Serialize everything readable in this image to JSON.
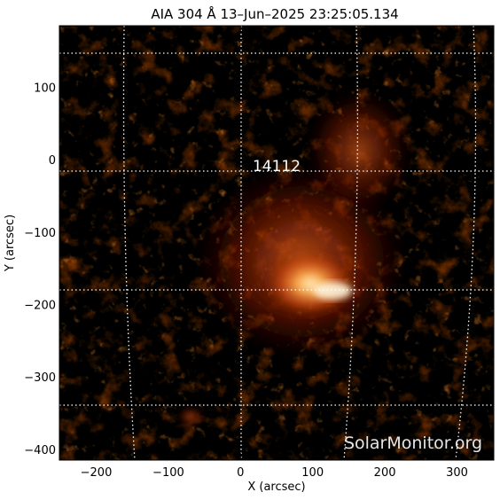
{
  "title": "AIA 304 Å 13–Jun–2025 23:25:05.134",
  "xlabel": "X (arcsec)",
  "ylabel": "Y (arcsec)",
  "x_ticks": [
    "−200",
    "−100",
    "0",
    "100",
    "200",
    "300"
  ],
  "y_ticks": [
    "100",
    "0",
    "−100",
    "−200",
    "−300",
    "−400"
  ],
  "x_tick_values": [
    -200,
    -100,
    0,
    100,
    200,
    300
  ],
  "y_tick_values": [
    100,
    0,
    -100,
    -200,
    -300,
    -400
  ],
  "x_range": [
    -251,
    351
  ],
  "y_range": [
    -415,
    185
  ],
  "active_region_label": "14112",
  "watermark": "SolarMonitor.org",
  "colors": {
    "background": "#000000",
    "chromosphere_low": "#5a0f00",
    "chromosphere_mid": "#c03c0a",
    "chromosphere_high": "#ffd08a",
    "grid": "#ffffff",
    "watermark": "#e6e6e6"
  },
  "image": {
    "type": "solar-euv-image",
    "colormap": "sdoaia304",
    "grid": "dotted heliographic",
    "bright_core": "active region center"
  }
}
